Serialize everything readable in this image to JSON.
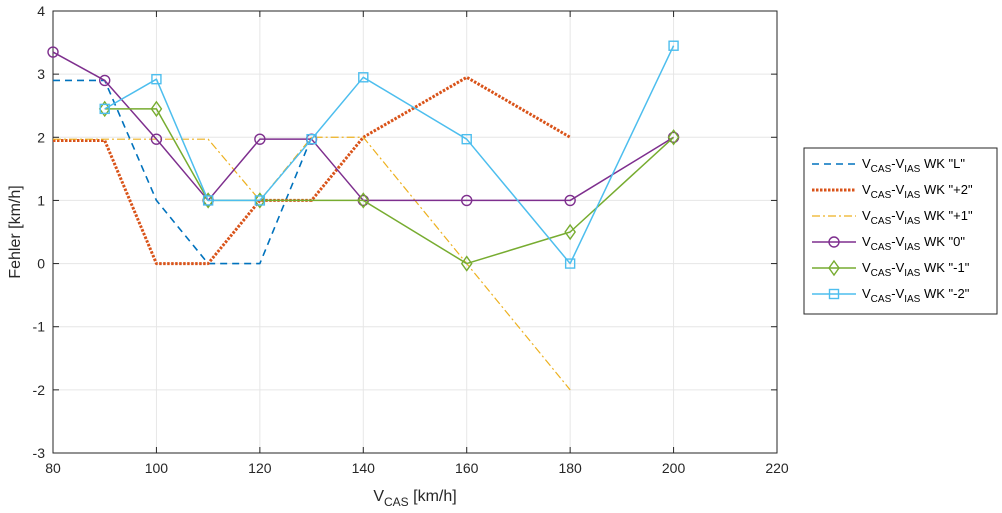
{
  "chart_data": {
    "type": "line",
    "xlabel": {
      "main": "V",
      "sub": "CAS",
      "unit": " [km/h]"
    },
    "ylabel": "Fehler [km/h]",
    "xlim": [
      80,
      220
    ],
    "ylim": [
      -3,
      4
    ],
    "xticks": [
      80,
      100,
      120,
      140,
      160,
      180,
      200,
      220
    ],
    "yticks": [
      -3,
      -2,
      -1,
      0,
      1,
      2,
      3,
      4
    ],
    "grid": true,
    "legend_position": "right",
    "series": [
      {
        "name": "V_CAS-V_IAS WK \"L\"",
        "legend": {
          "a": "V",
          "a_sub": "CAS",
          "b": "-V",
          "b_sub": "IAS",
          "rest": " WK \"L\""
        },
        "color": "#0072BD",
        "style": "dashed",
        "marker": "none",
        "x": [
          80,
          90,
          100,
          110,
          120,
          130
        ],
        "y": [
          2.9,
          2.9,
          1.0,
          0.0,
          0.0,
          2.0
        ]
      },
      {
        "name": "V_CAS-V_IAS WK \"+2\"",
        "legend": {
          "a": "V",
          "a_sub": "CAS",
          "b": "-V",
          "b_sub": "IAS",
          "rest": " WK \"+2\""
        },
        "color": "#D95319",
        "style": "dotted",
        "marker": "none",
        "x": [
          80,
          90,
          100,
          110,
          120,
          130,
          140,
          160,
          180
        ],
        "y": [
          1.95,
          1.95,
          0.0,
          0.0,
          1.0,
          1.0,
          2.0,
          2.95,
          2.0
        ]
      },
      {
        "name": "V_CAS-V_IAS WK \"+1\"",
        "legend": {
          "a": "V",
          "a_sub": "CAS",
          "b": "-V",
          "b_sub": "IAS",
          "rest": " WK \"+1\""
        },
        "color": "#EDB120",
        "style": "dashdot",
        "marker": "none",
        "x": [
          80,
          110,
          120,
          130,
          140,
          180
        ],
        "y": [
          1.97,
          1.97,
          1.0,
          2.0,
          2.0,
          -2.0
        ]
      },
      {
        "name": "V_CAS-V_IAS WK \"0\"",
        "legend": {
          "a": "V",
          "a_sub": "CAS",
          "b": "-V",
          "b_sub": "IAS",
          "rest": " WK \"0\""
        },
        "color": "#7E2F8E",
        "style": "solid",
        "marker": "circle",
        "x": [
          80,
          90,
          100,
          110,
          120,
          130,
          140,
          160,
          180,
          200
        ],
        "y": [
          3.35,
          2.9,
          1.97,
          1.0,
          1.97,
          1.97,
          1.0,
          1.0,
          1.0,
          2.0
        ]
      },
      {
        "name": "V_CAS-V_IAS WK \"-1\"",
        "legend": {
          "a": "V",
          "a_sub": "CAS",
          "b": "-V",
          "b_sub": "IAS",
          "rest": " WK \"-1\""
        },
        "color": "#77AC30",
        "style": "solid",
        "marker": "diamond",
        "x": [
          90,
          100,
          110,
          120,
          140,
          160,
          180,
          200
        ],
        "y": [
          2.45,
          2.45,
          1.0,
          1.0,
          1.0,
          0.0,
          0.5,
          2.0
        ]
      },
      {
        "name": "V_CAS-V_IAS WK \"-2\"",
        "legend": {
          "a": "V",
          "a_sub": "CAS",
          "b": "-V",
          "b_sub": "IAS",
          "rest": " WK \"-2\""
        },
        "color": "#4DBEEE",
        "style": "solid",
        "marker": "square",
        "x": [
          90,
          100,
          110,
          120,
          130,
          140,
          160,
          180,
          200
        ],
        "y": [
          2.45,
          2.92,
          1.0,
          1.0,
          1.97,
          2.95,
          1.97,
          0.0,
          3.45
        ]
      }
    ]
  }
}
